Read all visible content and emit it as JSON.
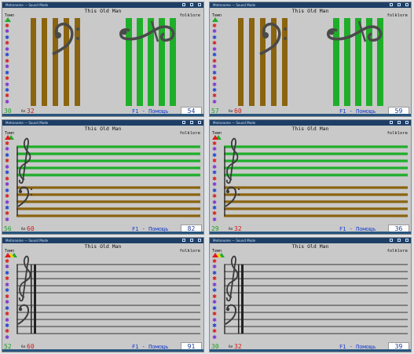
{
  "app_title": "Metronome — Sound Mode",
  "song_title": "This Old Man",
  "tempo_label": "Темп",
  "genre": "folklore",
  "unit_label": "бл",
  "help_label": "F1 - Помощь",
  "colors": {
    "brown": "#8a6410",
    "green": "#1fae2a",
    "staff_gray": "#555555",
    "score_green": "#1fa12a",
    "second_red": "#d41a1a",
    "help_blue": "#1b3fd0"
  },
  "star_colors": [
    "#d41a1a",
    "#7a2bd0",
    "#1b3fd0",
    "#d41a1a",
    "#7a2bd0",
    "#1b3fd0",
    "#d41a1a",
    "#7a2bd0",
    "#1b3fd0",
    "#d41a1a",
    "#7a2bd0",
    "#1b3fd0",
    "#d41a1a",
    "#7a2bd0"
  ],
  "panels": [
    {
      "mode": "bars",
      "score": "30",
      "second": "32",
      "box": "54",
      "triangles": [
        "green"
      ]
    },
    {
      "mode": "bars",
      "score": "57",
      "second": "60",
      "box": "59",
      "triangles": [
        "green"
      ]
    },
    {
      "mode": "colored-staff",
      "score": "56",
      "second": "60",
      "box": "82",
      "triangles": [
        "red",
        "green"
      ]
    },
    {
      "mode": "colored-staff",
      "score": "29",
      "second": "32",
      "box": "36",
      "triangles": [
        "red",
        "green"
      ]
    },
    {
      "mode": "plain-staff",
      "score": "52",
      "second": "60",
      "box": "91",
      "triangles": [
        "red",
        "yellow",
        "green"
      ]
    },
    {
      "mode": "plain-staff",
      "score": "30",
      "second": "32",
      "box": "39",
      "triangles": [
        "red",
        "yellow",
        "green"
      ]
    }
  ]
}
